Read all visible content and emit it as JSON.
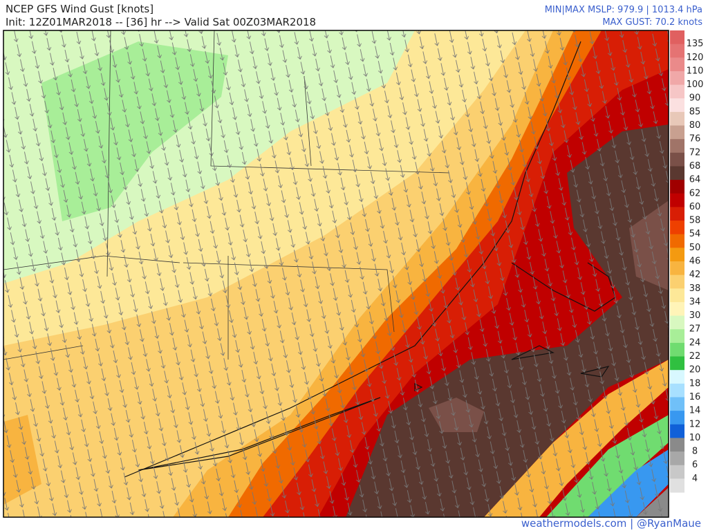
{
  "header": {
    "title": "NCEP GFS Wind Gust [knots]",
    "subtitle": "Init: 12Z01MAR2018 -- [36] hr --> Valid Sat 00Z03MAR2018",
    "mslp": "MIN|MAX MSLP: 979.9 | 1013.4 hPa",
    "max_gust": "MAX GUST: 70.2 knots"
  },
  "colorbar": {
    "labels": [
      "135",
      "120",
      "110",
      "100",
      "90",
      "85",
      "80",
      "76",
      "72",
      "68",
      "64",
      "62",
      "60",
      "58",
      "54",
      "50",
      "46",
      "42",
      "38",
      "34",
      "30",
      "27",
      "24",
      "22",
      "20",
      "18",
      "16",
      "14",
      "12",
      "10",
      "8",
      "6",
      "4"
    ],
    "colors": [
      "#e06060",
      "#e57373",
      "#ea8a8a",
      "#f0a8a8",
      "#f6c6c6",
      "#fbe0e0",
      "#e8c8b8",
      "#c8a090",
      "#a07468",
      "#7a5048",
      "#5a3830",
      "#a00000",
      "#c00000",
      "#d81e05",
      "#ee4000",
      "#f06a00",
      "#f49a10",
      "#f8b440",
      "#fbd070",
      "#fde898",
      "#fff4b8",
      "#d8f8c0",
      "#a8ee98",
      "#70dc70",
      "#30c040",
      "#d8f8ff",
      "#a8e0ff",
      "#70c0f8",
      "#3898f0",
      "#1060d8",
      "#8a8a8a",
      "#a8a8a8",
      "#c8c8c8",
      "#e0e0e0"
    ]
  },
  "footer": {
    "credit": "weathermodels.com | @RyanMaue"
  }
}
